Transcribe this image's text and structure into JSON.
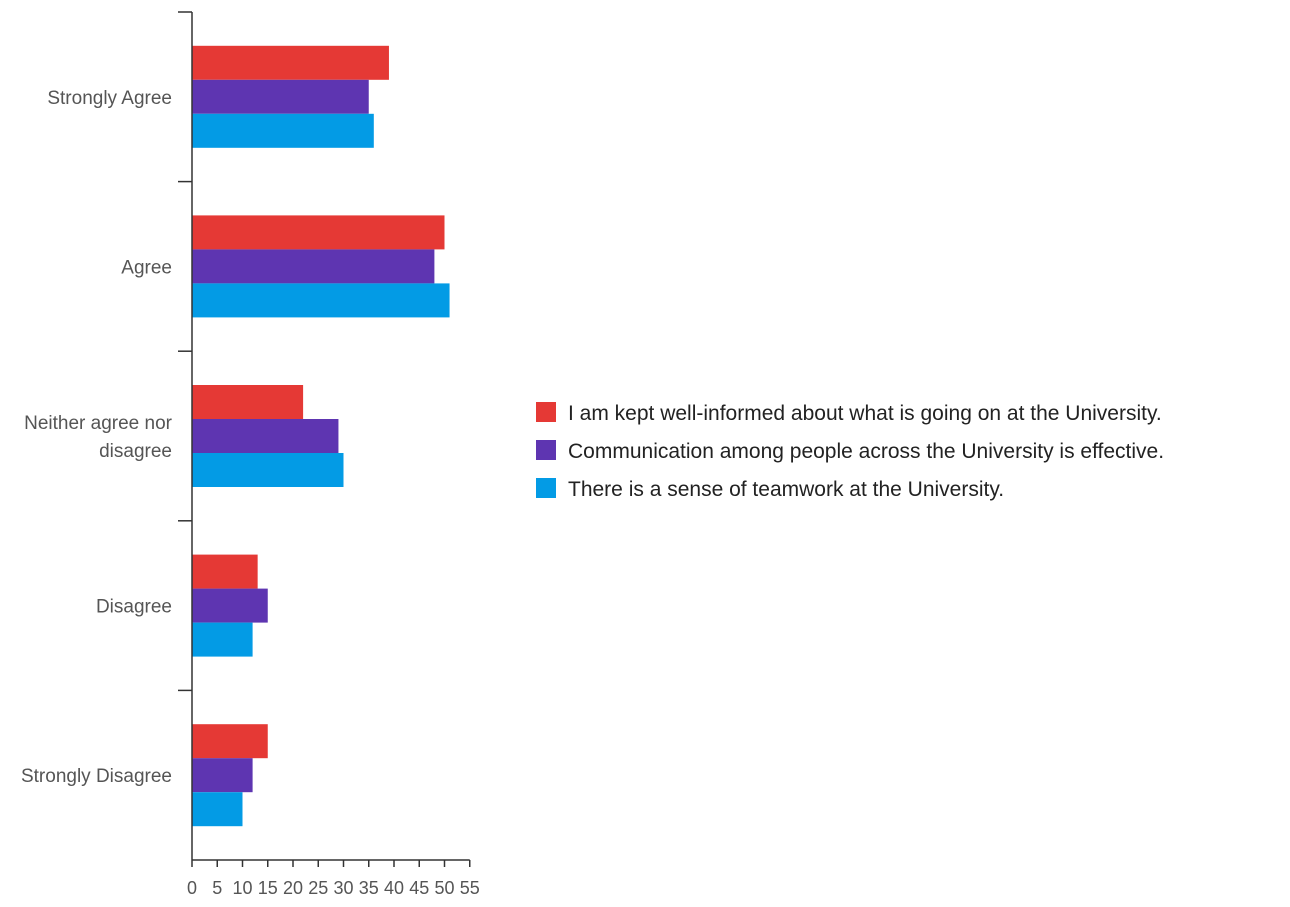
{
  "chart_data": {
    "type": "bar",
    "orientation": "horizontal",
    "categories": [
      "Strongly Agree",
      "Agree",
      "Neither agree nor disagree",
      "Disagree",
      "Strongly Disagree"
    ],
    "category_label_lines": [
      [
        "Strongly Agree"
      ],
      [
        "Agree"
      ],
      [
        "Neither agree nor",
        "disagree"
      ],
      [
        "Disagree"
      ],
      [
        "Strongly Disagree"
      ]
    ],
    "series": [
      {
        "name": "I am kept well-informed about what is going on at the University.",
        "color": "#e53935",
        "values": [
          39,
          50,
          22,
          13,
          15
        ]
      },
      {
        "name": "Communication among people across the University is effective.",
        "color": "#5e35b1",
        "values": [
          35,
          48,
          29,
          15,
          12
        ]
      },
      {
        "name": "There is a sense of teamwork at the University.",
        "color": "#039be5",
        "values": [
          36,
          51,
          30,
          12,
          10
        ]
      }
    ],
    "x_ticks": [
      0,
      5,
      10,
      15,
      20,
      25,
      30,
      35,
      40,
      45,
      50,
      55
    ],
    "xlim": [
      0,
      55
    ],
    "grid": false,
    "legend": "right"
  }
}
